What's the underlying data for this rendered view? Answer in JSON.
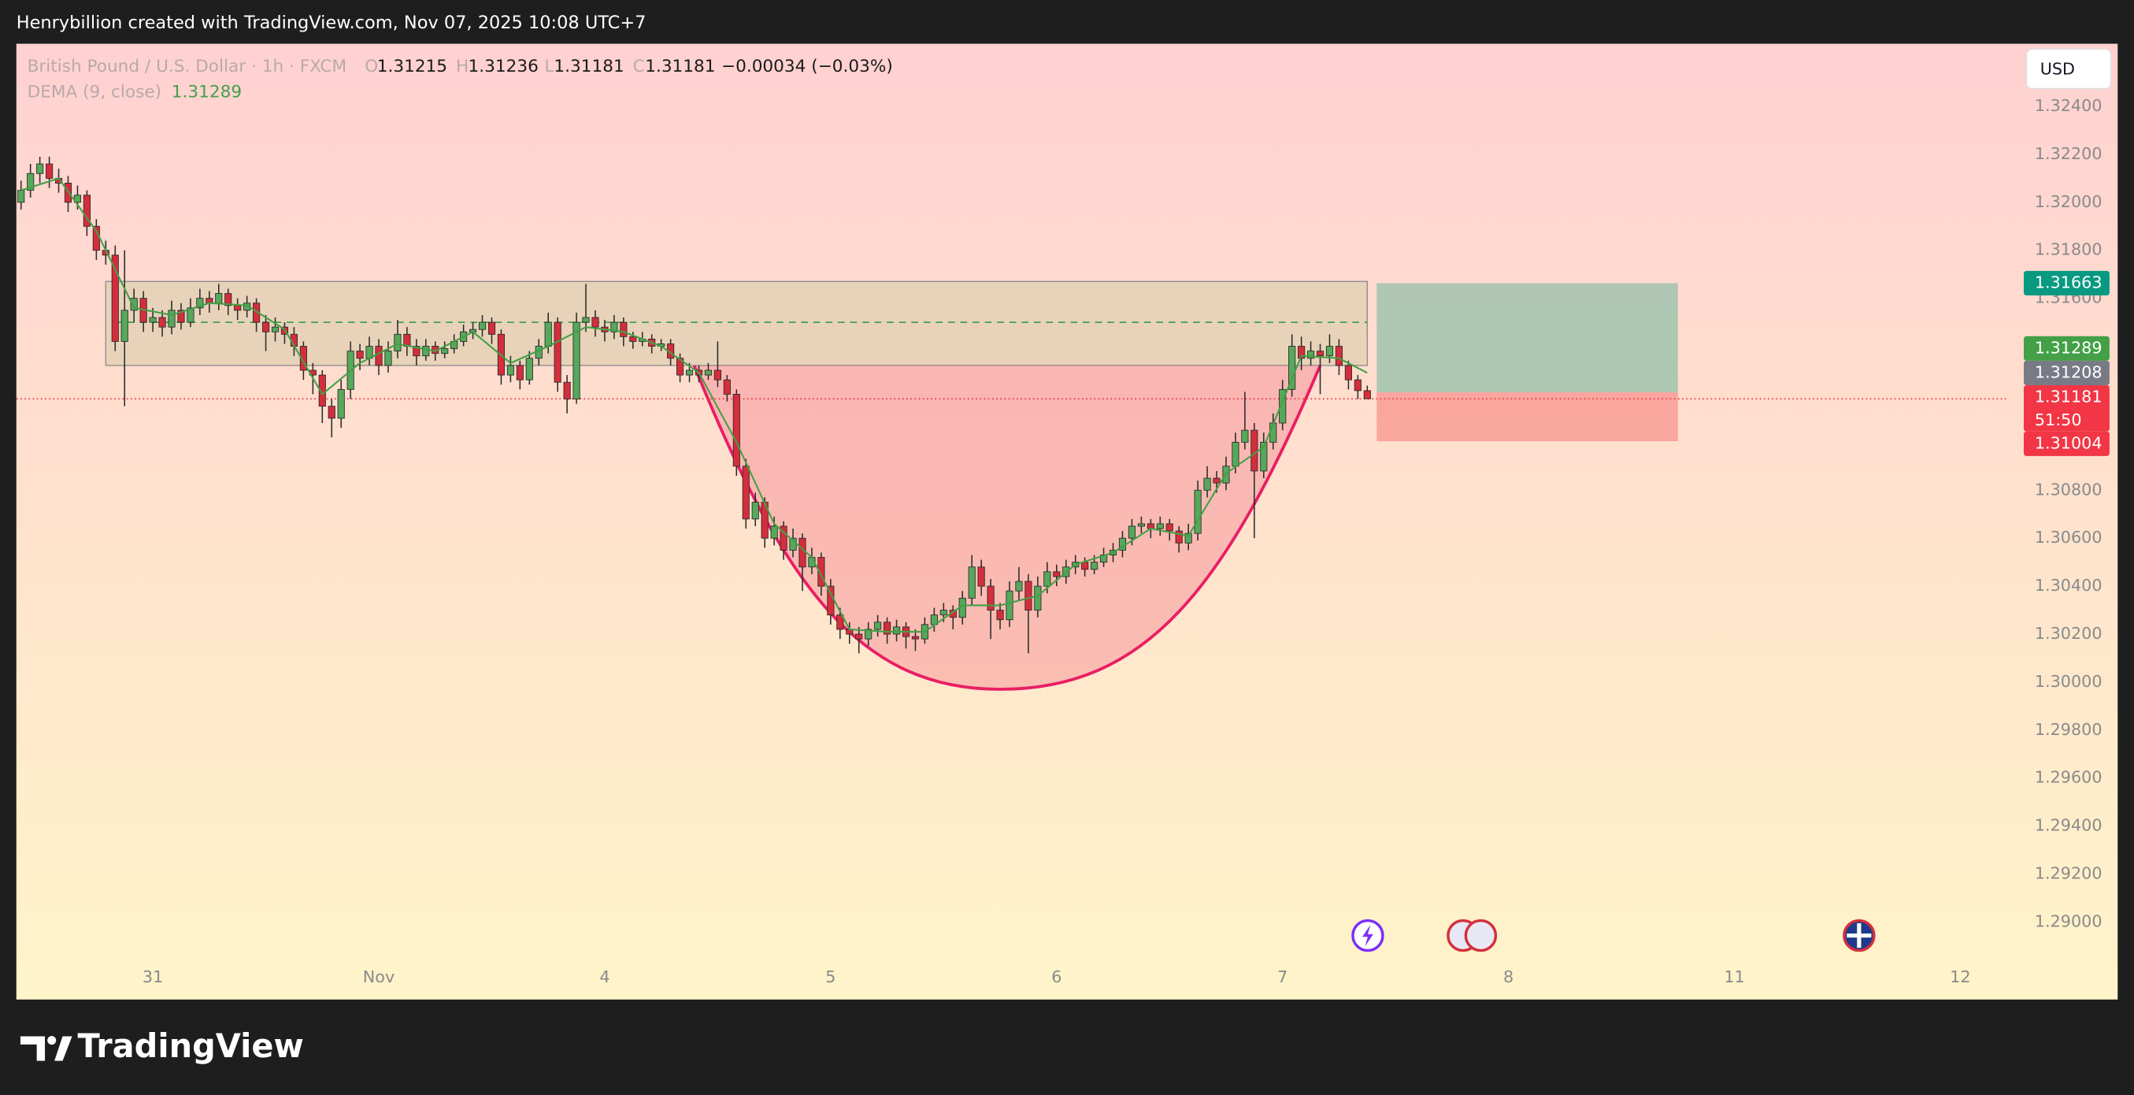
{
  "header": "Henrybillion created with TradingView.com, Nov 07, 2025 10:08 UTC+7",
  "brand": "TradingView",
  "chart_data": {
    "type": "candlestick",
    "symbol": "British Pound / U.S. Dollar · 1h · FXCM",
    "ohlc_labels": [
      "O",
      "H",
      "L",
      "C"
    ],
    "change": "−0.00034 (−0.03%)",
    "currency": "USD",
    "countdown": "51:50",
    "up_color": "#56a85a",
    "down_color": "#d42e3c",
    "ohlc": [
      [
        1.32,
        1.3209,
        1.3197,
        1.3205
      ],
      [
        1.3205,
        1.3216,
        1.3202,
        1.3212
      ],
      [
        1.3212,
        1.3219,
        1.3208,
        1.3216
      ],
      [
        1.3216,
        1.3219,
        1.3206,
        1.321
      ],
      [
        1.321,
        1.3214,
        1.3204,
        1.3208
      ],
      [
        1.3208,
        1.3211,
        1.3196,
        1.32
      ],
      [
        1.32,
        1.3207,
        1.3197,
        1.3203
      ],
      [
        1.3203,
        1.3205,
        1.3186,
        1.319
      ],
      [
        1.319,
        1.3193,
        1.3176,
        1.318
      ],
      [
        1.318,
        1.3184,
        1.3174,
        1.3178
      ],
      [
        1.3178,
        1.3182,
        1.3138,
        1.3142
      ],
      [
        1.3142,
        1.318,
        1.3115,
        1.3155
      ],
      [
        1.3155,
        1.3164,
        1.315,
        1.316
      ],
      [
        1.316,
        1.3163,
        1.3146,
        1.315
      ],
      [
        1.315,
        1.3156,
        1.3146,
        1.3152
      ],
      [
        1.3152,
        1.3155,
        1.3144,
        1.3148
      ],
      [
        1.3148,
        1.3159,
        1.3145,
        1.3155
      ],
      [
        1.3155,
        1.3158,
        1.3147,
        1.315
      ],
      [
        1.315,
        1.316,
        1.3148,
        1.3156
      ],
      [
        1.3156,
        1.3164,
        1.3153,
        1.316
      ],
      [
        1.316,
        1.3163,
        1.3154,
        1.3158
      ],
      [
        1.3158,
        1.3166,
        1.3155,
        1.3162
      ],
      [
        1.3162,
        1.3164,
        1.3153,
        1.3157
      ],
      [
        1.3157,
        1.316,
        1.3151,
        1.3155
      ],
      [
        1.3155,
        1.3161,
        1.3152,
        1.3158
      ],
      [
        1.3158,
        1.316,
        1.3146,
        1.315
      ],
      [
        1.315,
        1.3153,
        1.3138,
        1.3146
      ],
      [
        1.3146,
        1.3152,
        1.3142,
        1.3148
      ],
      [
        1.3148,
        1.315,
        1.3141,
        1.3145
      ],
      [
        1.3145,
        1.3148,
        1.3136,
        1.314
      ],
      [
        1.314,
        1.3142,
        1.3126,
        1.313
      ],
      [
        1.313,
        1.3133,
        1.312,
        1.3128
      ],
      [
        1.3128,
        1.313,
        1.3108,
        1.3115
      ],
      [
        1.3115,
        1.3118,
        1.3102,
        1.311
      ],
      [
        1.311,
        1.3126,
        1.3106,
        1.3122
      ],
      [
        1.3122,
        1.3142,
        1.3118,
        1.3138
      ],
      [
        1.3138,
        1.3141,
        1.313,
        1.3135
      ],
      [
        1.3135,
        1.3144,
        1.3132,
        1.314
      ],
      [
        1.314,
        1.3143,
        1.3128,
        1.3132
      ],
      [
        1.3132,
        1.3142,
        1.3129,
        1.3138
      ],
      [
        1.3138,
        1.3151,
        1.3135,
        1.3145
      ],
      [
        1.3145,
        1.3148,
        1.3136,
        1.314
      ],
      [
        1.314,
        1.3143,
        1.3132,
        1.3136
      ],
      [
        1.3136,
        1.3143,
        1.3134,
        1.314
      ],
      [
        1.314,
        1.3142,
        1.3134,
        1.3137
      ],
      [
        1.3137,
        1.3142,
        1.3135,
        1.3139
      ],
      [
        1.3139,
        1.3145,
        1.3137,
        1.3142
      ],
      [
        1.3142,
        1.3149,
        1.314,
        1.3146
      ],
      [
        1.3146,
        1.315,
        1.3143,
        1.3147
      ],
      [
        1.3147,
        1.3153,
        1.3144,
        1.315
      ],
      [
        1.315,
        1.3152,
        1.3141,
        1.3145
      ],
      [
        1.3145,
        1.3147,
        1.3124,
        1.3128
      ],
      [
        1.3128,
        1.3136,
        1.3125,
        1.3132
      ],
      [
        1.3132,
        1.3134,
        1.3122,
        1.3126
      ],
      [
        1.3126,
        1.3138,
        1.3124,
        1.3135
      ],
      [
        1.3135,
        1.3143,
        1.3132,
        1.314
      ],
      [
        1.314,
        1.3154,
        1.3137,
        1.315
      ],
      [
        1.315,
        1.3152,
        1.3121,
        1.3125
      ],
      [
        1.3125,
        1.3128,
        1.3112,
        1.3118
      ],
      [
        1.3118,
        1.3154,
        1.3116,
        1.315
      ],
      [
        1.315,
        1.3166,
        1.3146,
        1.3152
      ],
      [
        1.3152,
        1.3155,
        1.3144,
        1.3148
      ],
      [
        1.3148,
        1.3151,
        1.3142,
        1.3146
      ],
      [
        1.3146,
        1.3153,
        1.3143,
        1.315
      ],
      [
        1.315,
        1.3152,
        1.314,
        1.3144
      ],
      [
        1.3144,
        1.3146,
        1.3139,
        1.3142
      ],
      [
        1.3142,
        1.3146,
        1.314,
        1.3143
      ],
      [
        1.3143,
        1.3145,
        1.3137,
        1.314
      ],
      [
        1.314,
        1.3143,
        1.3138,
        1.3141
      ],
      [
        1.3141,
        1.3143,
        1.3132,
        1.3135
      ],
      [
        1.3135,
        1.3137,
        1.3125,
        1.3128
      ],
      [
        1.3128,
        1.3133,
        1.3125,
        1.313
      ],
      [
        1.313,
        1.3132,
        1.3125,
        1.3128
      ],
      [
        1.3128,
        1.3133,
        1.3126,
        1.313
      ],
      [
        1.313,
        1.3142,
        1.3123,
        1.3126
      ],
      [
        1.3126,
        1.3128,
        1.3117,
        1.312
      ],
      [
        1.312,
        1.3122,
        1.3086,
        1.309
      ],
      [
        1.309,
        1.3093,
        1.3064,
        1.3068
      ],
      [
        1.3068,
        1.3079,
        1.3065,
        1.3075
      ],
      [
        1.3075,
        1.3077,
        1.3056,
        1.306
      ],
      [
        1.306,
        1.3069,
        1.3057,
        1.3065
      ],
      [
        1.3065,
        1.3067,
        1.3051,
        1.3055
      ],
      [
        1.3055,
        1.3064,
        1.3052,
        1.306
      ],
      [
        1.306,
        1.3062,
        1.3038,
        1.3048
      ],
      [
        1.3048,
        1.3056,
        1.3045,
        1.3052
      ],
      [
        1.3052,
        1.3054,
        1.3036,
        1.304
      ],
      [
        1.304,
        1.3043,
        1.3024,
        1.3028
      ],
      [
        1.3028,
        1.3031,
        1.3018,
        1.3022
      ],
      [
        1.3022,
        1.3025,
        1.3016,
        1.302
      ],
      [
        1.302,
        1.3023,
        1.3012,
        1.3018
      ],
      [
        1.3018,
        1.3025,
        1.3015,
        1.3022
      ],
      [
        1.3022,
        1.3028,
        1.3019,
        1.3025
      ],
      [
        1.3025,
        1.3027,
        1.3016,
        1.302
      ],
      [
        1.302,
        1.3026,
        1.3017,
        1.3023
      ],
      [
        1.3023,
        1.3025,
        1.3014,
        1.3019
      ],
      [
        1.3019,
        1.3022,
        1.3013,
        1.3018
      ],
      [
        1.3018,
        1.3027,
        1.3016,
        1.3024
      ],
      [
        1.3024,
        1.3031,
        1.3021,
        1.3028
      ],
      [
        1.3028,
        1.3033,
        1.3025,
        1.303
      ],
      [
        1.303,
        1.3032,
        1.3022,
        1.3027
      ],
      [
        1.3027,
        1.3038,
        1.3024,
        1.3035
      ],
      [
        1.3035,
        1.3053,
        1.3032,
        1.3048
      ],
      [
        1.3048,
        1.3051,
        1.3036,
        1.304
      ],
      [
        1.304,
        1.3043,
        1.3018,
        1.303
      ],
      [
        1.303,
        1.3033,
        1.3022,
        1.3026
      ],
      [
        1.3026,
        1.3042,
        1.3023,
        1.3038
      ],
      [
        1.3038,
        1.3048,
        1.3034,
        1.3042
      ],
      [
        1.3042,
        1.3045,
        1.3012,
        1.303
      ],
      [
        1.303,
        1.3044,
        1.3027,
        1.304
      ],
      [
        1.304,
        1.305,
        1.3037,
        1.3046
      ],
      [
        1.3046,
        1.3049,
        1.304,
        1.3044
      ],
      [
        1.3044,
        1.3051,
        1.3041,
        1.3048
      ],
      [
        1.3048,
        1.3053,
        1.3045,
        1.305
      ],
      [
        1.305,
        1.3052,
        1.3044,
        1.3047
      ],
      [
        1.3047,
        1.3053,
        1.3045,
        1.305
      ],
      [
        1.305,
        1.3056,
        1.3048,
        1.3053
      ],
      [
        1.3053,
        1.3058,
        1.305,
        1.3055
      ],
      [
        1.3055,
        1.3063,
        1.3052,
        1.306
      ],
      [
        1.306,
        1.3068,
        1.3057,
        1.3065
      ],
      [
        1.3065,
        1.3069,
        1.3062,
        1.3066
      ],
      [
        1.3066,
        1.3068,
        1.306,
        1.3064
      ],
      [
        1.3064,
        1.3069,
        1.3061,
        1.3066
      ],
      [
        1.3066,
        1.3068,
        1.3059,
        1.3063
      ],
      [
        1.3063,
        1.3065,
        1.3054,
        1.3058
      ],
      [
        1.3058,
        1.3066,
        1.3055,
        1.3062
      ],
      [
        1.3062,
        1.3084,
        1.3059,
        1.308
      ],
      [
        1.308,
        1.309,
        1.3077,
        1.3085
      ],
      [
        1.3085,
        1.3088,
        1.3079,
        1.3083
      ],
      [
        1.3083,
        1.3094,
        1.308,
        1.309
      ],
      [
        1.309,
        1.3104,
        1.3087,
        1.31
      ],
      [
        1.31,
        1.3121,
        1.3097,
        1.3105
      ],
      [
        1.3105,
        1.3108,
        1.306,
        1.3088
      ],
      [
        1.3088,
        1.3104,
        1.3085,
        1.31
      ],
      [
        1.31,
        1.3112,
        1.3097,
        1.3108
      ],
      [
        1.3108,
        1.3126,
        1.3105,
        1.3122
      ],
      [
        1.3122,
        1.3145,
        1.3119,
        1.314
      ],
      [
        1.314,
        1.3144,
        1.313,
        1.3135
      ],
      [
        1.3135,
        1.3142,
        1.3132,
        1.3138
      ],
      [
        1.3138,
        1.3141,
        1.312,
        1.3136
      ],
      [
        1.3136,
        1.3145,
        1.3133,
        1.314
      ],
      [
        1.314,
        1.3143,
        1.3128,
        1.3132
      ],
      [
        1.3132,
        1.3134,
        1.3122,
        1.3126
      ],
      [
        1.3126,
        1.3128,
        1.3118,
        1.31215
      ],
      [
        1.31215,
        1.31236,
        1.31181,
        1.31181
      ]
    ],
    "dema": {
      "name": "DEMA (9, close)",
      "color": "#43a047",
      "x": [
        0,
        4,
        8,
        12,
        16,
        20,
        24,
        28,
        32,
        36,
        40,
        44,
        48,
        52,
        56,
        60,
        64,
        68,
        72,
        76,
        80,
        84,
        88,
        92,
        96,
        100,
        104,
        108,
        112,
        116,
        120,
        124,
        128,
        132,
        136,
        140,
        143
      ],
      "values": [
        1.3205,
        1.321,
        1.3188,
        1.3156,
        1.3153,
        1.3158,
        1.3157,
        1.3147,
        1.312,
        1.3133,
        1.3141,
        1.3138,
        1.3146,
        1.3133,
        1.314,
        1.3148,
        1.3146,
        1.314,
        1.3129,
        1.31,
        1.3066,
        1.3052,
        1.3022,
        1.3021,
        1.3021,
        1.3032,
        1.3032,
        1.3036,
        1.3049,
        1.3054,
        1.3064,
        1.3061,
        1.3087,
        1.3098,
        1.3136,
        1.3135,
        1.31289
      ]
    },
    "zone": {
      "x": [
        9,
        143
      ],
      "y": [
        1.3132,
        1.3167
      ]
    },
    "midline": {
      "x": [
        10,
        143
      ],
      "y": 1.315
    },
    "cup": {
      "x": [
        71.5,
        104,
        138
      ],
      "y": [
        1.3132,
        1.2997,
        1.3132
      ]
    },
    "position": {
      "x": [
        144,
        176
      ],
      "entry": 1.31208,
      "target": 1.31663,
      "stop": 1.31004
    },
    "xlim": [
      -0.5,
      211
    ],
    "ylim": [
      1.28677,
      1.32661
    ],
    "xticks": [
      {
        "value": 14,
        "label": "31"
      },
      {
        "value": 38,
        "label": "Nov"
      },
      {
        "value": 62,
        "label": "4"
      },
      {
        "value": 86,
        "label": "5"
      },
      {
        "value": 110,
        "label": "6"
      },
      {
        "value": 134,
        "label": "7"
      },
      {
        "value": 158,
        "label": "8"
      },
      {
        "value": 182,
        "label": "11"
      },
      {
        "value": 206,
        "label": "12"
      }
    ],
    "yticks": [
      {
        "value": 1.324,
        "label": "1.32400"
      },
      {
        "value": 1.322,
        "label": "1.32200"
      },
      {
        "value": 1.32,
        "label": "1.32000"
      },
      {
        "value": 1.318,
        "label": "1.31800"
      },
      {
        "value": 1.316,
        "label": "1.31600"
      },
      {
        "value": 1.308,
        "label": "1.30800"
      },
      {
        "value": 1.306,
        "label": "1.30600"
      },
      {
        "value": 1.304,
        "label": "1.30400"
      },
      {
        "value": 1.302,
        "label": "1.30200"
      },
      {
        "value": 1.3,
        "label": "1.30000"
      },
      {
        "value": 1.298,
        "label": "1.29800"
      },
      {
        "value": 1.296,
        "label": "1.29600"
      },
      {
        "value": 1.294,
        "label": "1.29400"
      },
      {
        "value": 1.292,
        "label": "1.29200"
      },
      {
        "value": 1.29,
        "label": "1.29000"
      }
    ],
    "grid": false
  }
}
